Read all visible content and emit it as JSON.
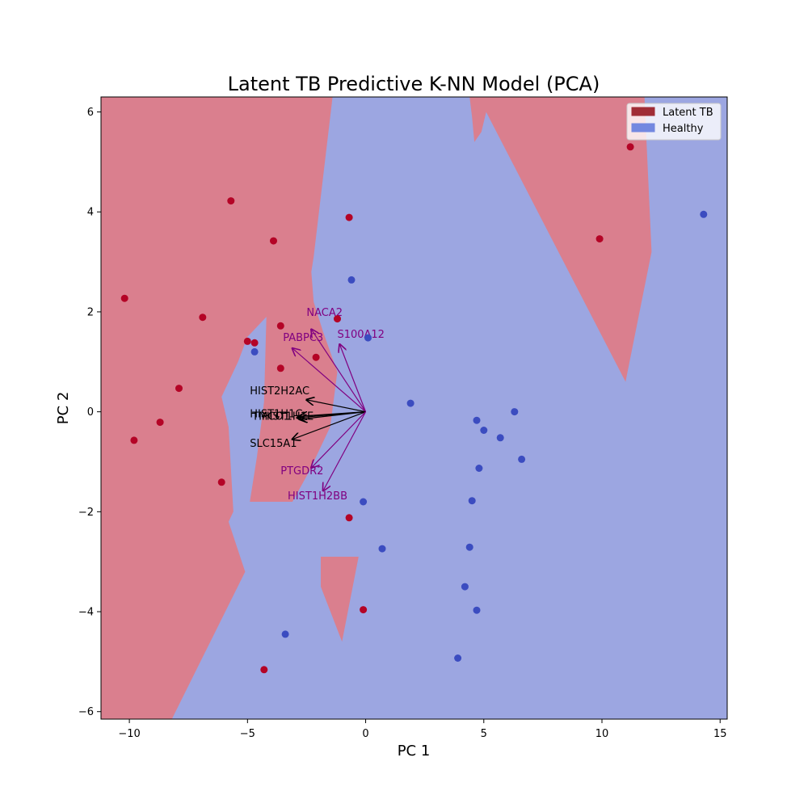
{
  "chart_data": {
    "type": "scatter",
    "title": "Latent TB Predictive K-NN Model (PCA)",
    "xlabel": "PC 1",
    "ylabel": "PC 2",
    "xlim": [
      -11.2,
      15.3
    ],
    "ylim": [
      -6.15,
      6.3
    ],
    "xticks": [
      -10,
      -5,
      0,
      5,
      10,
      15
    ],
    "yticks": [
      -6,
      -4,
      -2,
      0,
      2,
      4,
      6
    ],
    "legend": {
      "placement": "top-right",
      "entries": [
        {
          "label": "Latent TB",
          "color": "#a02d36"
        },
        {
          "label": "Healthy",
          "color": "#7388e0"
        }
      ]
    },
    "region_colors": {
      "Latent TB": "#da7f8e",
      "Healthy": "#9ca6e1"
    },
    "latent_tb_regions": [
      [
        [
          -11.2,
          6.3
        ],
        [
          -1.4,
          6.3
        ],
        [
          -2.2,
          3.1
        ],
        [
          -2.3,
          2.8
        ],
        [
          -2.2,
          2.2
        ],
        [
          -1.8,
          1.6
        ],
        [
          -1.2,
          0.8
        ],
        [
          -1.5,
          -0.3
        ],
        [
          -2.4,
          -1.2
        ],
        [
          -3.1,
          -1.8
        ],
        [
          -4.9,
          -1.8
        ],
        [
          -4.6,
          -0.9
        ],
        [
          -4.3,
          0.2
        ],
        [
          -4.2,
          1.9
        ],
        [
          -5.0,
          1.5
        ],
        [
          -5.4,
          1.0
        ],
        [
          -6.1,
          0.3
        ],
        [
          -5.8,
          -0.3
        ],
        [
          -5.6,
          -2.0
        ],
        [
          -5.8,
          -2.2
        ],
        [
          -5.1,
          -3.2
        ],
        [
          -8.2,
          -6.15
        ],
        [
          -11.2,
          -6.15
        ]
      ],
      [
        [
          -1.9,
          -2.9
        ],
        [
          -0.3,
          -2.9
        ],
        [
          -1.0,
          -4.6
        ],
        [
          -1.9,
          -3.5
        ]
      ],
      [
        [
          4.4,
          6.3
        ],
        [
          11.8,
          6.3
        ],
        [
          12.1,
          3.2
        ],
        [
          11.0,
          0.6
        ],
        [
          5.1,
          6.0
        ],
        [
          4.9,
          5.6
        ],
        [
          4.6,
          5.4
        ],
        [
          4.5,
          5.9
        ]
      ]
    ],
    "series": [
      {
        "name": "Latent TB",
        "color": "#b40426",
        "points": [
          [
            -5.7,
            4.22
          ],
          [
            -3.9,
            3.42
          ],
          [
            -0.7,
            3.89
          ],
          [
            -10.2,
            2.27
          ],
          [
            -6.9,
            1.89
          ],
          [
            -3.6,
            1.72
          ],
          [
            -1.2,
            1.86
          ],
          [
            -5.0,
            1.41
          ],
          [
            -4.7,
            1.38
          ],
          [
            -2.1,
            1.09
          ],
          [
            -3.6,
            0.87
          ],
          [
            -7.9,
            0.47
          ],
          [
            -8.7,
            -0.21
          ],
          [
            -9.8,
            -0.57
          ],
          [
            -6.1,
            -1.41
          ],
          [
            -0.7,
            -2.12
          ],
          [
            -0.1,
            -3.96
          ],
          [
            -4.3,
            -5.16
          ],
          [
            9.9,
            3.46
          ],
          [
            11.2,
            5.3
          ]
        ]
      },
      {
        "name": "Healthy",
        "color": "#3b4cc0",
        "points": [
          [
            -0.6,
            2.64
          ],
          [
            0.1,
            1.48
          ],
          [
            -4.7,
            1.2
          ],
          [
            1.9,
            0.17
          ],
          [
            4.7,
            -0.17
          ],
          [
            5.0,
            -0.37
          ],
          [
            5.7,
            -0.52
          ],
          [
            6.3,
            0.0
          ],
          [
            6.6,
            -0.95
          ],
          [
            4.8,
            -1.13
          ],
          [
            4.5,
            -1.78
          ],
          [
            -0.1,
            -1.8
          ],
          [
            0.7,
            -2.74
          ],
          [
            4.4,
            -2.71
          ],
          [
            4.2,
            -3.5
          ],
          [
            4.7,
            -3.97
          ],
          [
            -3.4,
            -4.45
          ],
          [
            3.9,
            -4.93
          ],
          [
            14.3,
            3.95
          ]
        ]
      }
    ],
    "vectors": [
      {
        "label": "NACA2",
        "color": "#800080",
        "end": [
          -2.3,
          1.65
        ],
        "label_pos": [
          -2.5,
          1.92
        ]
      },
      {
        "label": "S100A12",
        "color": "#800080",
        "end": [
          -1.1,
          1.35
        ],
        "label_pos": [
          -1.2,
          1.48
        ]
      },
      {
        "label": "PABPC3",
        "color": "#800080",
        "end": [
          -3.1,
          1.27
        ],
        "label_pos": [
          -3.5,
          1.42
        ]
      },
      {
        "label": "HIST2H2AC",
        "color": "#000000",
        "end": [
          -2.5,
          0.24
        ],
        "label_pos": [
          -4.9,
          0.35
        ]
      },
      {
        "label": "HIST1H1C",
        "color": "#000000",
        "end": [
          -2.8,
          -0.09
        ],
        "label_pos": [
          -4.9,
          -0.11
        ]
      },
      {
        "label": "TMCO1",
        "color": "#000000",
        "end": [
          -2.9,
          -0.12
        ],
        "label_pos": [
          -4.8,
          -0.16
        ]
      },
      {
        "label": "HIST1H1E",
        "color": "#000000",
        "end": [
          -2.8,
          -0.15
        ],
        "label_pos": [
          -4.4,
          -0.16
        ]
      },
      {
        "label": "SLC15A1",
        "color": "#000000",
        "end": [
          -3.1,
          -0.55
        ],
        "label_pos": [
          -4.9,
          -0.7
        ]
      },
      {
        "label": "PTGDR2",
        "color": "#800080",
        "end": [
          -2.3,
          -1.12
        ],
        "label_pos": [
          -3.6,
          -1.25
        ]
      },
      {
        "label": "HIST1H2BB",
        "color": "#800080",
        "end": [
          -1.8,
          -1.58
        ],
        "label_pos": [
          -3.3,
          -1.75
        ]
      }
    ]
  }
}
